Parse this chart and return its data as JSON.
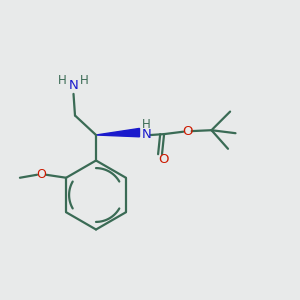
{
  "bg_color": "#e8eaea",
  "bond_color": "#3a6b55",
  "nitrogen_color": "#1a1acc",
  "oxygen_color": "#cc1a00",
  "line_width": 1.6,
  "figsize": [
    3.0,
    3.0
  ],
  "dpi": 100,
  "xlim": [
    0,
    10
  ],
  "ylim": [
    0,
    10
  ]
}
